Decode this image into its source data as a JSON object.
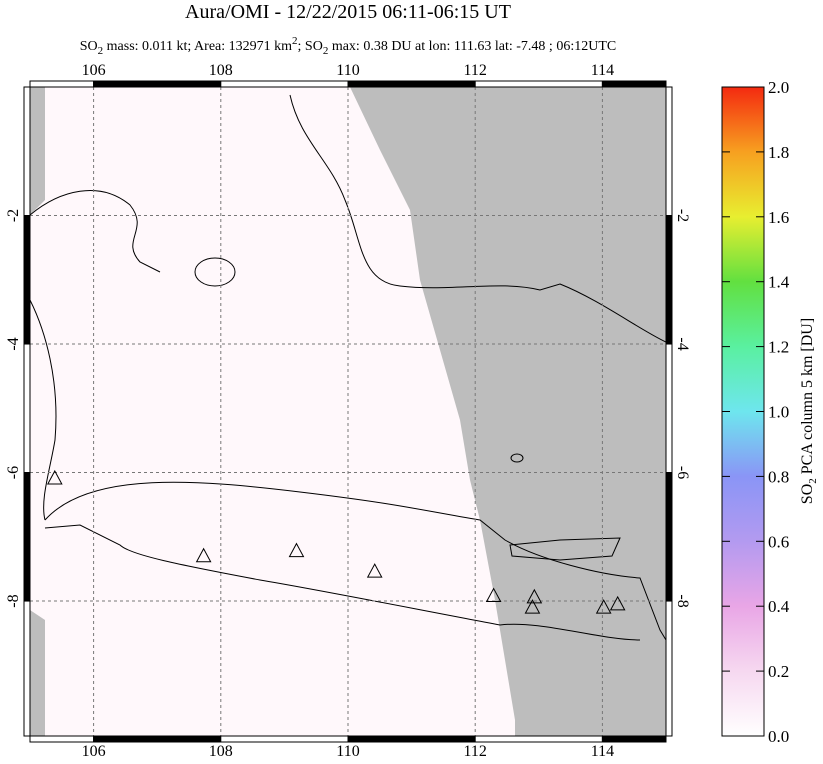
{
  "chart_data": {
    "type": "map",
    "title": "Aura/OMI - 12/22/2015 06:11-06:15 UT",
    "subtitle": [
      "SO",
      "2",
      " mass: 0.011 kt; Area: 132971 km",
      "2",
      "; SO",
      "2",
      " max: 0.38 DU at lon: 111.63 lat: -7.48 ; 06:12UTC"
    ],
    "xlim": [
      105,
      115
    ],
    "xticks": [
      106,
      108,
      110,
      112,
      114
    ],
    "ylim": [
      -10.1,
      0
    ],
    "yticks": [
      -2,
      -4,
      -6,
      -8
    ],
    "grid": true,
    "volcanoes": {
      "x": [
        105.39,
        107.73,
        109.19,
        110.42,
        112.29,
        112.93,
        112.9,
        114.02,
        114.24
      ],
      "y": [
        -6.1,
        -7.31,
        -7.23,
        -7.55,
        -7.93,
        -7.95,
        -8.11,
        -8.11,
        -8.06
      ]
    },
    "colorbar": {
      "label": [
        "SO",
        "2",
        " PCA column 5 km [DU]"
      ],
      "lim": [
        0,
        2
      ],
      "ticks": [
        {
          "value": 0,
          "label": "0.0"
        },
        {
          "value": 0.2,
          "label": "0.2"
        },
        {
          "value": 0.4,
          "label": "0.4"
        },
        {
          "value": 0.6,
          "label": "0.6"
        },
        {
          "value": 0.8,
          "label": "0.8"
        },
        {
          "value": 1,
          "label": "1.0"
        },
        {
          "value": 1.2,
          "label": "1.2"
        },
        {
          "value": 1.4,
          "label": "1.4"
        },
        {
          "value": 1.6,
          "label": "1.6"
        },
        {
          "value": 1.8,
          "label": "1.8"
        },
        {
          "value": 2,
          "label": "2.0"
        }
      ]
    }
  }
}
